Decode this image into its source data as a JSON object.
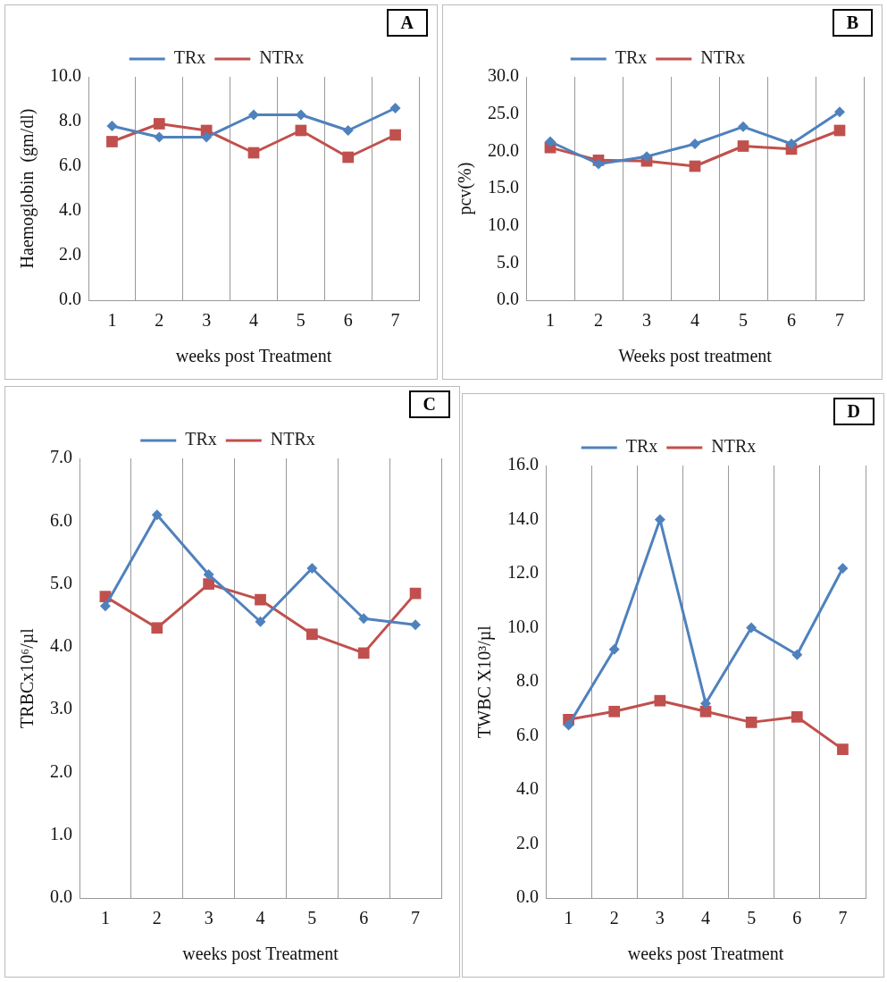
{
  "chart_data": [
    {
      "type": "line",
      "title": "A",
      "xlabel": "weeks post Treatment",
      "ylabel": "Haemoglobin  (gm/dl)",
      "categories": [
        "1",
        "2",
        "3",
        "4",
        "5",
        "6",
        "7"
      ],
      "series": [
        {
          "name": "TRx",
          "color": "#4f81bd",
          "marker": "diamond",
          "values": [
            7.8,
            7.3,
            7.3,
            8.3,
            8.3,
            7.6,
            8.6
          ]
        },
        {
          "name": "NTRx",
          "color": "#c0504d",
          "marker": "square",
          "values": [
            7.1,
            7.9,
            7.6,
            6.6,
            7.6,
            6.4,
            7.4
          ]
        }
      ],
      "ylim": [
        0,
        10
      ],
      "yticks": [
        {
          "value": 0,
          "label": "0.0"
        },
        {
          "value": 2,
          "label": "2.0"
        },
        {
          "value": 4,
          "label": "4.0"
        },
        {
          "value": 6,
          "label": "6.0"
        },
        {
          "value": 8,
          "label": "8.0"
        },
        {
          "value": 10,
          "label": "10.0"
        }
      ],
      "grid": "x",
      "legend": "top",
      "line_style": "solid"
    },
    {
      "type": "line",
      "title": "B",
      "xlabel": "Weeks post treatment",
      "ylabel": "pcv(%)",
      "categories": [
        "1",
        "2",
        "3",
        "4",
        "5",
        "6",
        "7"
      ],
      "series": [
        {
          "name": "TRx",
          "color": "#4f81bd",
          "marker": "diamond",
          "values": [
            21.3,
            18.3,
            19.3,
            21.0,
            23.3,
            21.0,
            25.3
          ]
        },
        {
          "name": "NTRx",
          "color": "#c0504d",
          "marker": "square",
          "values": [
            20.5,
            18.8,
            18.7,
            18.0,
            20.7,
            20.3,
            22.8
          ]
        }
      ],
      "ylim": [
        0,
        30
      ],
      "yticks": [
        {
          "value": 0,
          "label": "0.0"
        },
        {
          "value": 5,
          "label": "5.0"
        },
        {
          "value": 10,
          "label": "10.0"
        },
        {
          "value": 15,
          "label": "15.0"
        },
        {
          "value": 20,
          "label": "20.0"
        },
        {
          "value": 25,
          "label": "25.0"
        },
        {
          "value": 30,
          "label": "30.0"
        }
      ],
      "grid": "x",
      "legend": "top",
      "line_style": "solid"
    },
    {
      "type": "line",
      "title": "C",
      "xlabel": "weeks post Treatment",
      "ylabel": "TRBCx10⁶/µl",
      "categories": [
        "1",
        "2",
        "3",
        "4",
        "5",
        "6",
        "7"
      ],
      "series": [
        {
          "name": "TRx",
          "color": "#4f81bd",
          "marker": "diamond",
          "values": [
            4.65,
            6.1,
            5.15,
            4.4,
            5.25,
            4.45,
            4.35
          ]
        },
        {
          "name": "NTRx",
          "color": "#c0504d",
          "marker": "square",
          "values": [
            4.8,
            4.3,
            5.0,
            4.75,
            4.2,
            3.9,
            4.85
          ]
        }
      ],
      "ylim": [
        0,
        7
      ],
      "yticks": [
        {
          "value": 0,
          "label": "0.0"
        },
        {
          "value": 1,
          "label": "1.0"
        },
        {
          "value": 2,
          "label": "2.0"
        },
        {
          "value": 3,
          "label": "3.0"
        },
        {
          "value": 4,
          "label": "4.0"
        },
        {
          "value": 5,
          "label": "5.0"
        },
        {
          "value": 6,
          "label": "6.0"
        },
        {
          "value": 7,
          "label": "7.0"
        }
      ],
      "grid": "x",
      "legend": "top",
      "line_style": "solid"
    },
    {
      "type": "line",
      "title": "D",
      "xlabel": "weeks post Treatment",
      "ylabel": "TWBC X10³/µl",
      "categories": [
        "1",
        "2",
        "3",
        "4",
        "5",
        "6",
        "7"
      ],
      "series": [
        {
          "name": "TRx",
          "color": "#4f81bd",
          "marker": "diamond",
          "values": [
            6.4,
            9.2,
            14.0,
            7.2,
            10.0,
            9.0,
            12.2
          ]
        },
        {
          "name": "NTRx",
          "color": "#c0504d",
          "marker": "square",
          "values": [
            6.6,
            6.9,
            7.3,
            6.9,
            6.5,
            6.7,
            5.5
          ]
        }
      ],
      "ylim": [
        0,
        16
      ],
      "yticks": [
        {
          "value": 0,
          "label": "0.0"
        },
        {
          "value": 2,
          "label": "2.0"
        },
        {
          "value": 4,
          "label": "4.0"
        },
        {
          "value": 6,
          "label": "6.0"
        },
        {
          "value": 8,
          "label": "8.0"
        },
        {
          "value": 10,
          "label": "10.0"
        },
        {
          "value": 12,
          "label": "12.0"
        },
        {
          "value": 14,
          "label": "14.0"
        },
        {
          "value": 16,
          "label": "16.0"
        }
      ],
      "grid": "x",
      "legend": "top",
      "line_style": "solid"
    }
  ]
}
